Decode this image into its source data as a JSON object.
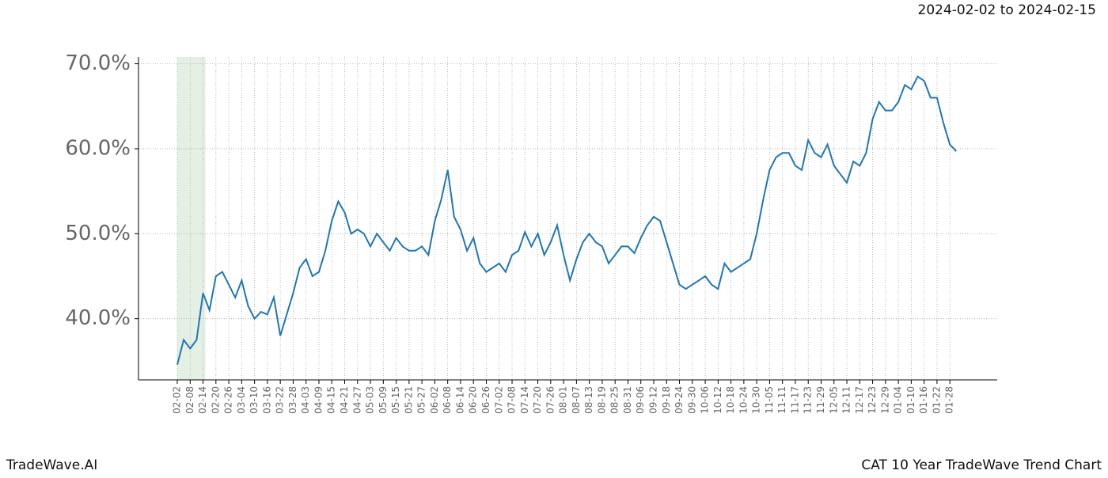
{
  "chart_data": {
    "type": "line",
    "subtitle": "2024-02-02 to 2024-02-15",
    "footer_left": "TradeWave.AI",
    "footer_right": "CAT 10 Year TradeWave Trend Chart",
    "categories": [
      "02-02",
      null,
      "02-08",
      null,
      "02-14",
      null,
      "02-20",
      null,
      "02-26",
      null,
      "03-04",
      null,
      "03-10",
      null,
      "03-16",
      null,
      "03-22",
      null,
      "03-28",
      null,
      "04-03",
      null,
      "04-09",
      null,
      "04-15",
      null,
      "04-21",
      null,
      "04-27",
      null,
      "05-03",
      null,
      "05-09",
      null,
      "05-15",
      null,
      "05-21",
      null,
      "05-27",
      null,
      "06-02",
      null,
      "06-08",
      null,
      "06-14",
      null,
      "06-20",
      null,
      "06-26",
      null,
      "07-02",
      null,
      "07-08",
      null,
      "07-14",
      null,
      "07-20",
      null,
      "07-26",
      null,
      "08-01",
      null,
      "08-07",
      null,
      "08-13",
      null,
      "08-19",
      null,
      "08-25",
      null,
      "08-31",
      null,
      "09-06",
      null,
      "09-12",
      null,
      "09-18",
      null,
      "09-24",
      null,
      "09-30",
      null,
      "10-06",
      null,
      "10-12",
      null,
      "10-18",
      null,
      "10-24",
      null,
      "10-30",
      null,
      "11-05",
      null,
      "11-11",
      null,
      "11-17",
      null,
      "11-23",
      null,
      "11-29",
      null,
      "12-05",
      null,
      "12-11",
      null,
      "12-17",
      null,
      "12-23",
      null,
      "12-29",
      null,
      "01-04",
      null,
      "01-10",
      null,
      "01-16",
      null,
      "01-22",
      null,
      "01-28",
      null
    ],
    "series": [
      {
        "color": "#1f77b4",
        "values": [
          34.6,
          37.5,
          36.5,
          37.5,
          43,
          41,
          45,
          45.5,
          44,
          42.5,
          44.5,
          41.5,
          40,
          40.8,
          40.5,
          42.5,
          38,
          40.5,
          43,
          46,
          47,
          45,
          45.5,
          48,
          51.5,
          53.8,
          52.5,
          50,
          50.5,
          50,
          48.5,
          50,
          49,
          48,
          49.5,
          48.5,
          48,
          48,
          48.5,
          47.5,
          51.5,
          54,
          57.5,
          52,
          50.5,
          48,
          49.5,
          46.5,
          45.5,
          46,
          46.5,
          45.5,
          47.5,
          48,
          50.2,
          48.5,
          50,
          47.5,
          49,
          51,
          47.5,
          44.5,
          47,
          49,
          50,
          49,
          48.5,
          46.5,
          47.5,
          48.5,
          48.5,
          47.7,
          49.5,
          51,
          52,
          51.5,
          49,
          46.5,
          44,
          43.5,
          44,
          44.5,
          45,
          44,
          43.5,
          46.5,
          45.5,
          46,
          46.5,
          47,
          50,
          54,
          57.5,
          59,
          59.5,
          59.5,
          58,
          57.5,
          61,
          59.5,
          59,
          60.5,
          58,
          57,
          56,
          58.5,
          58,
          59.5,
          63.5,
          65.5,
          64.5,
          64.5,
          65.5,
          67.5,
          67,
          68.5,
          68,
          66,
          66,
          63,
          60.5,
          59.7
        ]
      }
    ],
    "highlight": {
      "start": "02-02",
      "end": "02-14",
      "color": "#d9ead9"
    },
    "ylim": [
      32.8,
      70.8
    ],
    "yticks": [
      {
        "value": 40,
        "label": "40.0%"
      },
      {
        "value": 50,
        "label": "50.0%"
      },
      {
        "value": 60,
        "label": "60.0%"
      },
      {
        "value": 70,
        "label": "70.0%"
      }
    ],
    "grid": true
  }
}
